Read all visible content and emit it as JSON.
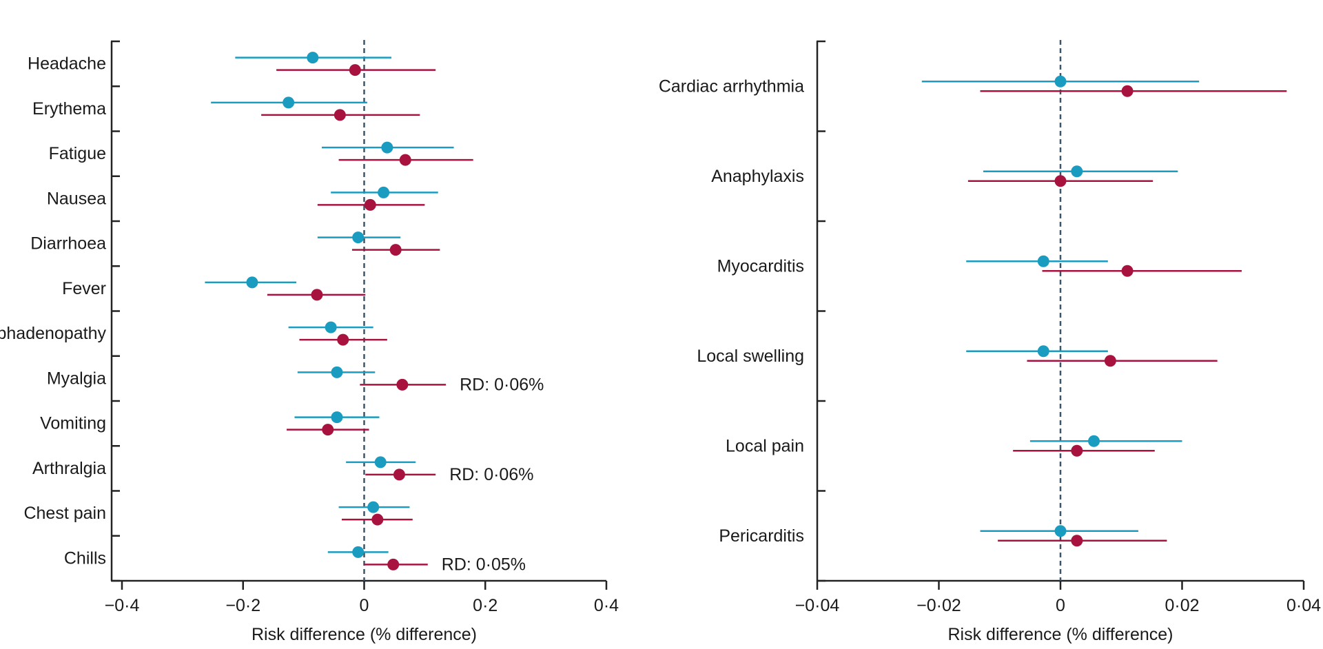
{
  "chart_data": [
    {
      "type": "forest",
      "xlabel": "Risk difference (% difference)",
      "xlim": [
        -0.4,
        0.4
      ],
      "xticks": [
        -0.4,
        -0.2,
        0,
        0.2,
        0.4
      ],
      "xtick_labels": [
        "−0·4",
        "−0·2",
        "0",
        "0·2",
        "0·4"
      ],
      "reference_line": 0,
      "series": [
        {
          "name": "series-blue",
          "color": "#1a9bc0"
        },
        {
          "name": "series-red",
          "color": "#a8123e"
        }
      ],
      "categories": [
        {
          "label": "Headache",
          "blue": {
            "est": -0.085,
            "lo": -0.213,
            "hi": 0.045
          },
          "red": {
            "est": -0.015,
            "lo": -0.145,
            "hi": 0.118
          }
        },
        {
          "label": "Erythema",
          "blue": {
            "est": -0.125,
            "lo": -0.253,
            "hi": 0.005
          },
          "red": {
            "est": -0.04,
            "lo": -0.17,
            "hi": 0.092
          }
        },
        {
          "label": "Fatigue",
          "blue": {
            "est": 0.038,
            "lo": -0.07,
            "hi": 0.148
          },
          "red": {
            "est": 0.068,
            "lo": -0.042,
            "hi": 0.18
          }
        },
        {
          "label": "Nausea",
          "blue": {
            "est": 0.032,
            "lo": -0.055,
            "hi": 0.122
          },
          "red": {
            "est": 0.01,
            "lo": -0.077,
            "hi": 0.1
          }
        },
        {
          "label": "Diarrhoea",
          "blue": {
            "est": -0.01,
            "lo": -0.077,
            "hi": 0.06
          },
          "red": {
            "est": 0.052,
            "lo": -0.02,
            "hi": 0.125
          }
        },
        {
          "label": "Fever",
          "blue": {
            "est": -0.185,
            "lo": -0.263,
            "hi": -0.112
          },
          "red": {
            "est": -0.078,
            "lo": -0.16,
            "hi": 0.002
          }
        },
        {
          "label": "Lymphadenopathy",
          "blue": {
            "est": -0.055,
            "lo": -0.125,
            "hi": 0.015
          },
          "red": {
            "est": -0.035,
            "lo": -0.107,
            "hi": 0.038
          }
        },
        {
          "label": "Myalgia",
          "blue": {
            "est": -0.045,
            "lo": -0.11,
            "hi": 0.018
          },
          "red": {
            "est": 0.063,
            "lo": -0.007,
            "hi": 0.135
          },
          "annotation": "RD: 0·06%"
        },
        {
          "label": "Vomiting",
          "blue": {
            "est": -0.045,
            "lo": -0.115,
            "hi": 0.025
          },
          "red": {
            "est": -0.06,
            "lo": -0.128,
            "hi": 0.008
          }
        },
        {
          "label": "Arthralgia",
          "blue": {
            "est": 0.027,
            "lo": -0.03,
            "hi": 0.085
          },
          "red": {
            "est": 0.058,
            "lo": 0.002,
            "hi": 0.118
          },
          "annotation": "RD: 0·06%"
        },
        {
          "label": "Chest pain",
          "blue": {
            "est": 0.015,
            "lo": -0.042,
            "hi": 0.075
          },
          "red": {
            "est": 0.022,
            "lo": -0.037,
            "hi": 0.08
          }
        },
        {
          "label": "Chills",
          "blue": {
            "est": -0.01,
            "lo": -0.06,
            "hi": 0.04
          },
          "red": {
            "est": 0.048,
            "lo": 0.0,
            "hi": 0.105
          },
          "annotation": "RD: 0·05%"
        }
      ]
    },
    {
      "type": "forest",
      "xlabel": "Risk difference (% difference)",
      "xlim": [
        -0.04,
        0.04
      ],
      "xticks": [
        -0.04,
        -0.02,
        0,
        0.02,
        0.04
      ],
      "xtick_labels": [
        "−0·04",
        "−0·02",
        "0",
        "0·02",
        "0·04"
      ],
      "reference_line": 0,
      "series": [
        {
          "name": "series-blue",
          "color": "#1a9bc0"
        },
        {
          "name": "series-red",
          "color": "#a8123e"
        }
      ],
      "categories": [
        {
          "label": "Cardiac arrhythmia",
          "blue": {
            "est": 0.0,
            "lo": -0.0228,
            "hi": 0.0228
          },
          "red": {
            "est": 0.011,
            "lo": -0.0132,
            "hi": 0.0372
          }
        },
        {
          "label": "Anaphylaxis",
          "blue": {
            "est": 0.0027,
            "lo": -0.0127,
            "hi": 0.0193
          },
          "red": {
            "est": 0.0,
            "lo": -0.0152,
            "hi": 0.0152
          }
        },
        {
          "label": "Myocarditis",
          "blue": {
            "est": -0.0028,
            "lo": -0.0155,
            "hi": 0.0078
          },
          "red": {
            "est": 0.011,
            "lo": -0.003,
            "hi": 0.0298
          }
        },
        {
          "label": "Local swelling",
          "blue": {
            "est": -0.0028,
            "lo": -0.0155,
            "hi": 0.0078
          },
          "red": {
            "est": 0.0082,
            "lo": -0.0055,
            "hi": 0.0258
          }
        },
        {
          "label": "Local pain",
          "blue": {
            "est": 0.0055,
            "lo": -0.005,
            "hi": 0.02
          },
          "red": {
            "est": 0.0027,
            "lo": -0.0078,
            "hi": 0.0155
          }
        },
        {
          "label": "Pericarditis",
          "blue": {
            "est": 0.0,
            "lo": -0.0132,
            "hi": 0.0128
          },
          "red": {
            "est": 0.0027,
            "lo": -0.0103,
            "hi": 0.0175
          }
        }
      ]
    }
  ]
}
